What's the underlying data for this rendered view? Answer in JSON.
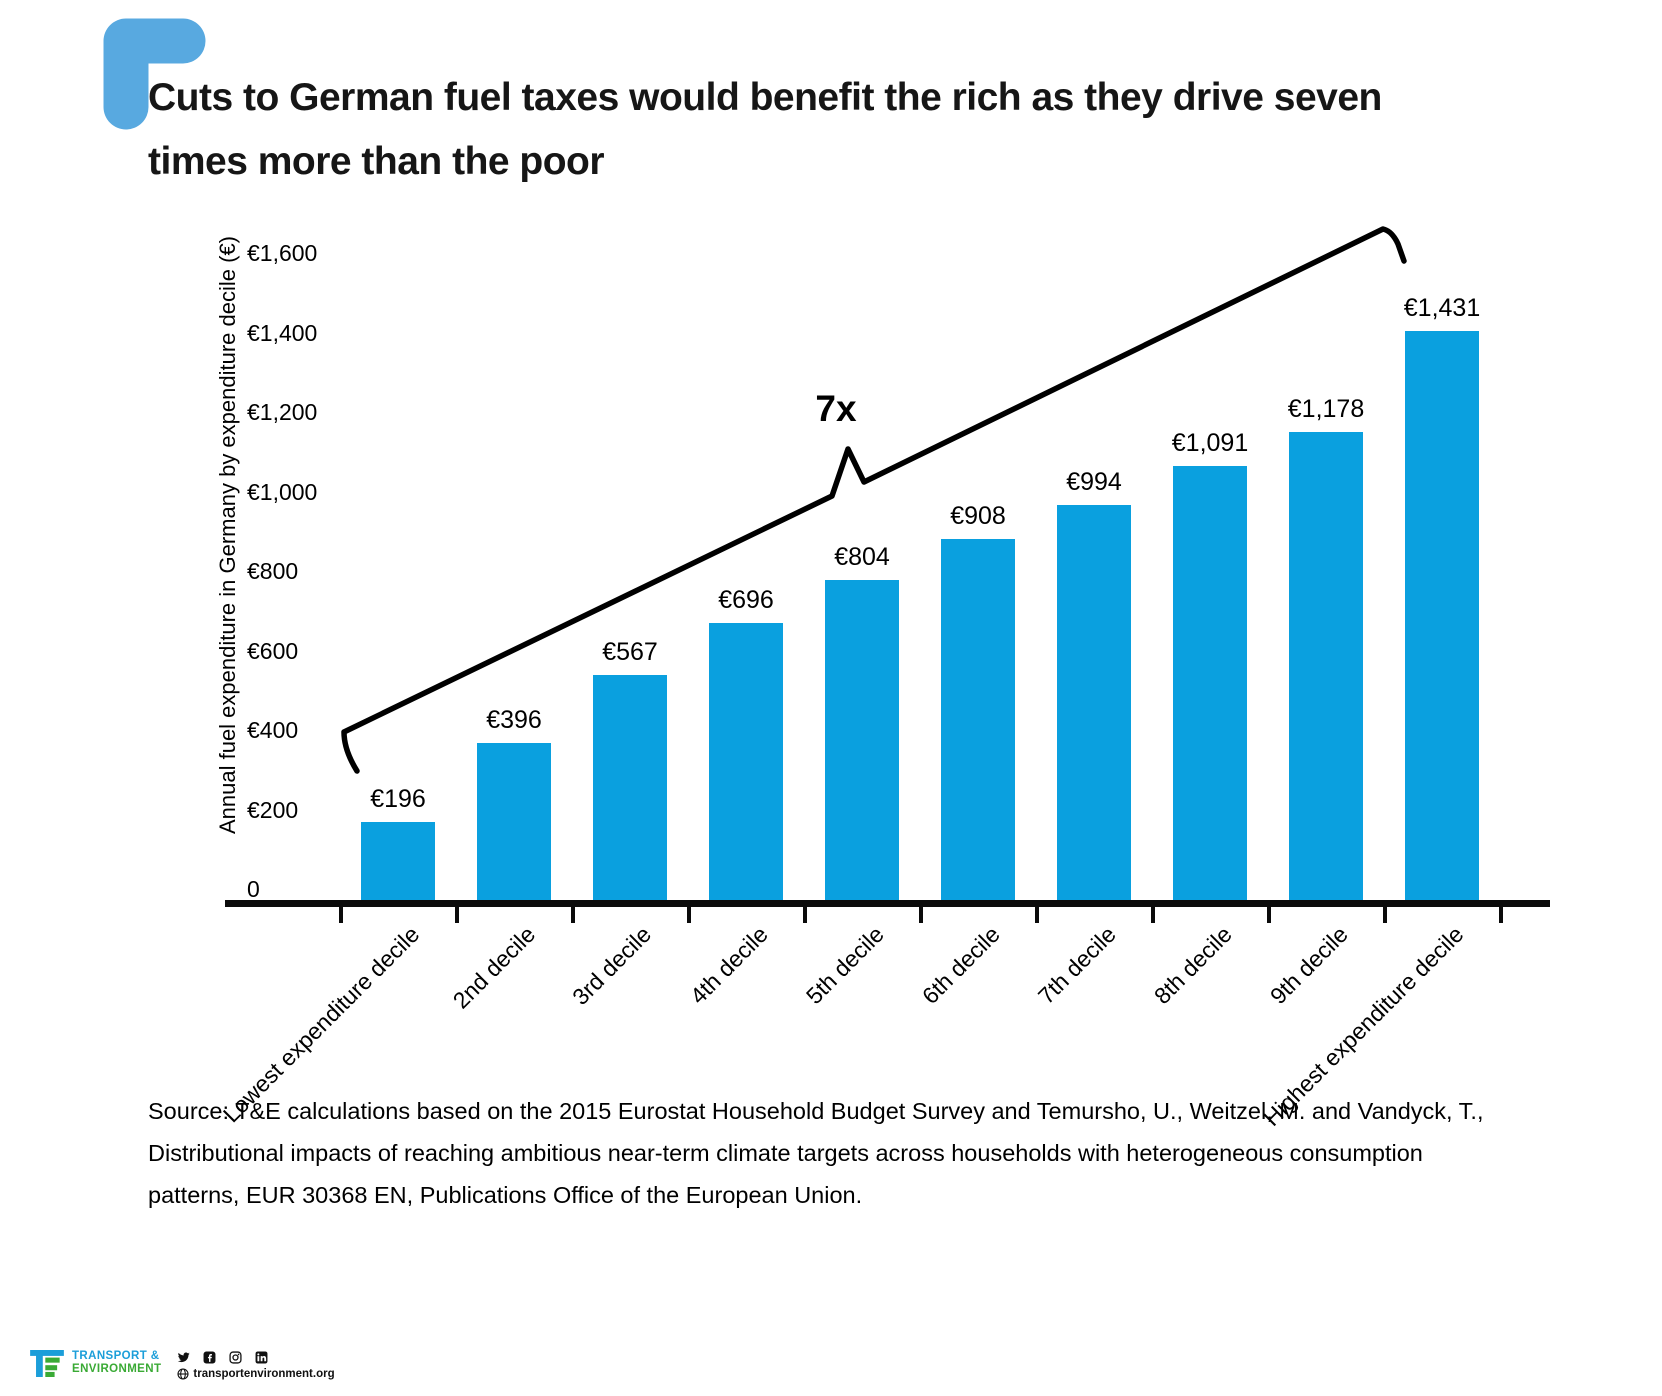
{
  "title": {
    "line1": "Cuts to German fuel taxes would benefit the rich as they drive seven",
    "line2": "times more than the poor"
  },
  "chart_data": {
    "type": "bar",
    "title": "Cuts to German fuel taxes would benefit the rich as they drive seven times more than the poor",
    "categories": [
      "Lowest expenditure decile",
      "2nd decile",
      "3rd decile",
      "4th decile",
      "5th decile",
      "6th decile",
      "7th decile",
      "8th decile",
      "9th decile",
      "Highest expenditure decile"
    ],
    "values": [
      196,
      396,
      567,
      696,
      804,
      908,
      994,
      1091,
      1178,
      1431
    ],
    "value_labels": [
      "€196",
      "€396",
      "€567",
      "€696",
      "€804",
      "€908",
      "€994",
      "€1,091",
      "€1,178",
      "€1,431"
    ],
    "xlabel": "",
    "ylabel": "Annual fuel expenditure in Germany by expenditure decile (€)",
    "ylim": [
      0,
      1600
    ],
    "y_ticks": [
      {
        "value": 0,
        "label": "0"
      },
      {
        "value": 200,
        "label": "€200"
      },
      {
        "value": 400,
        "label": "€400"
      },
      {
        "value": 600,
        "label": "€600"
      },
      {
        "value": 800,
        "label": "€800"
      },
      {
        "value": 1000,
        "label": "€1,000"
      },
      {
        "value": 1200,
        "label": "€1,200"
      },
      {
        "value": 1400,
        "label": "€1,400"
      },
      {
        "value": 1600,
        "label": "€1,600"
      }
    ],
    "grid": false,
    "legend_position": "none",
    "bar_color": "#0aa0df",
    "annotation": "7x"
  },
  "source": {
    "lines": [
      "Source: T&E calculations based on the 2015 Eurostat Household Budget Survey and Temursho, U., Weitzel, M. and Vandyck, T.,",
      "Distributional impacts of reaching ambitious near-term climate targets across households with heterogeneous consumption",
      "patterns, EUR 30368 EN, Publications Office of the European Union."
    ]
  },
  "footer": {
    "logo_line1": "TRANSPORT &",
    "logo_line2": "ENVIRONMENT",
    "website": "transportenvironment.org",
    "social_icons": [
      "twitter",
      "facebook",
      "instagram",
      "linkedin"
    ]
  },
  "colors": {
    "bar": "#0aa0df",
    "corner_accent": "#58a9e0",
    "brand_blue": "#1b9ed9",
    "brand_green": "#3aaa35"
  }
}
